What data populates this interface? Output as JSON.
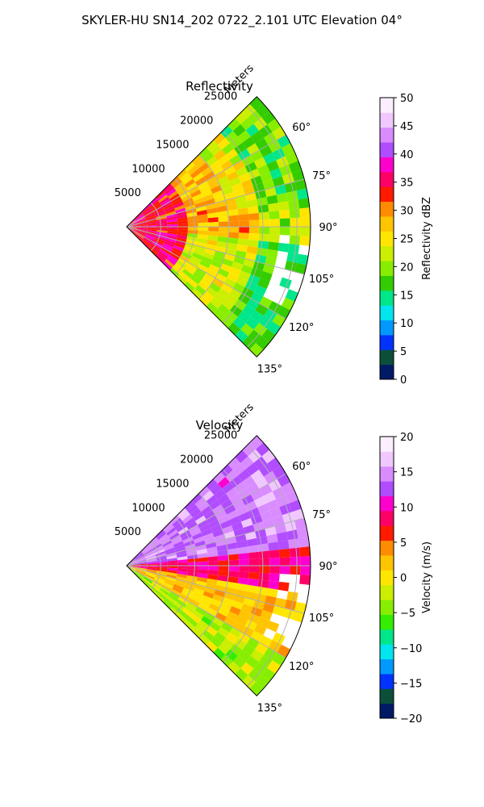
{
  "figure": {
    "title": "SKYLER-HU  SN14_202  0722_2.101 UTC Elevation 04°"
  },
  "chart_data": [
    {
      "type": "heatmap",
      "projection": "polar-sector",
      "title": "Reflectivity",
      "radial_axis": {
        "label": "Meters",
        "ticks": [
          5000,
          10000,
          15000,
          20000,
          25000
        ],
        "tick_labels": [
          "5000",
          "10000",
          "15000",
          "20000",
          "25000"
        ],
        "max": 27000
      },
      "angular_axis": {
        "range_deg": [
          45,
          135
        ],
        "ticks": [
          60,
          75,
          90,
          105,
          120,
          135
        ],
        "tick_labels": [
          "60°",
          "75°",
          "90°",
          "105°",
          "120°",
          "135°"
        ]
      },
      "colorbar": {
        "label": "Reflectivity dBZ",
        "range": [
          0,
          50
        ],
        "ticks": [
          0,
          5,
          10,
          15,
          20,
          25,
          30,
          35,
          40,
          45,
          50
        ],
        "tick_labels": [
          "0",
          "5",
          "10",
          "15",
          "20",
          "25",
          "30",
          "35",
          "40",
          "45",
          "50"
        ],
        "colors": [
          "#001a66",
          "#0b4f3a",
          "#0033ff",
          "#0099ff",
          "#00e5ee",
          "#00e68a",
          "#33cc00",
          "#88ee00",
          "#ccee00",
          "#ffe600",
          "#ffc400",
          "#ff8c00",
          "#ff1a00",
          "#ff0066",
          "#ff00cc",
          "#b14dff",
          "#d98cff",
          "#f0c8ff",
          "#fbeefe"
        ]
      },
      "grid": true,
      "field_description_values": {
        "near_range_dBZ": 35,
        "mid_range_dBZ": 28,
        "far_range_dBZ": 22
      }
    },
    {
      "type": "heatmap",
      "projection": "polar-sector",
      "title": "Velocity",
      "radial_axis": {
        "label": "Meters",
        "ticks": [
          5000,
          10000,
          15000,
          20000,
          25000
        ],
        "tick_labels": [
          "5000",
          "10000",
          "15000",
          "20000",
          "25000"
        ],
        "max": 27000
      },
      "angular_axis": {
        "range_deg": [
          45,
          135
        ],
        "ticks": [
          60,
          75,
          90,
          105,
          120,
          135
        ],
        "tick_labels": [
          "60°",
          "75°",
          "90°",
          "105°",
          "120°",
          "135°"
        ]
      },
      "colorbar": {
        "label": "Velocity (m/s)",
        "range": [
          -20,
          20
        ],
        "ticks": [
          -20,
          -15,
          -10,
          -5,
          0,
          5,
          10,
          15,
          20
        ],
        "tick_labels": [
          "−20",
          "−15",
          "−10",
          "−5",
          "0",
          "5",
          "10",
          "15",
          "20"
        ],
        "colors": [
          "#001a66",
          "#0b4f3a",
          "#0033ff",
          "#0099ff",
          "#00e5ee",
          "#00e68a",
          "#33ee00",
          "#88ee00",
          "#ccee00",
          "#ffe600",
          "#ffc400",
          "#ff8c00",
          "#ff1a00",
          "#ff0066",
          "#ff00cc",
          "#b14dff",
          "#d98cff",
          "#f0c8ff",
          "#fbeefe"
        ]
      },
      "grid": true,
      "field_description_values": {
        "inbound_sector_m_s": 14,
        "outbound_sector_m_s": 2,
        "boundary_m_s": 9
      }
    }
  ]
}
